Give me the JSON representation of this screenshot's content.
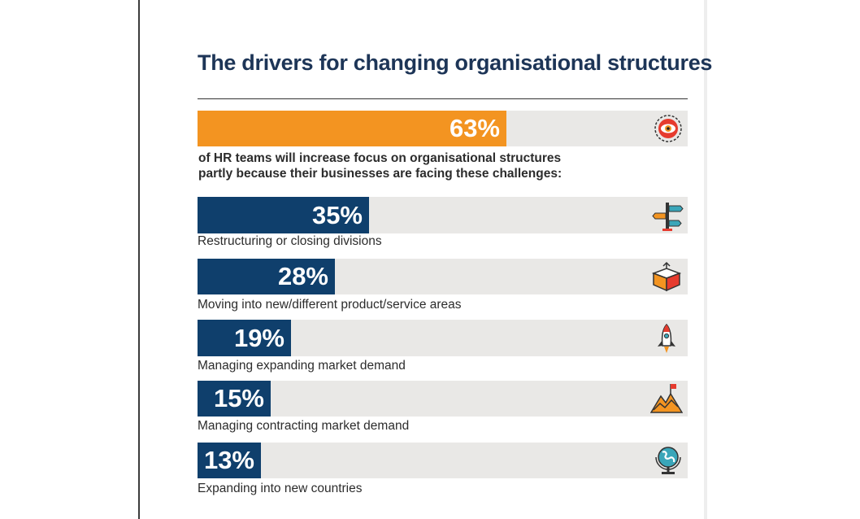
{
  "header": {
    "title": "The drivers for changing organisational structures"
  },
  "colors": {
    "highlight": "#f39421",
    "series": "#0f3f6c",
    "track": "#e9e8e6",
    "title": "#1d3557"
  },
  "headline": {
    "label": "63%",
    "value": 63,
    "caption_line1": "of HR teams will increase focus on organisational structures",
    "caption_line2": "partly because their businesses are facing these challenges:",
    "icon": "eye-target-icon"
  },
  "drivers": [
    {
      "label": "35%",
      "value": 35,
      "caption": "Restructuring or closing divisions",
      "icon": "signpost-icon"
    },
    {
      "label": "28%",
      "value": 28,
      "caption": "Moving into new/different product/service areas",
      "icon": "open-box-icon"
    },
    {
      "label": "19%",
      "value": 19,
      "caption": "Managing expanding market demand",
      "icon": "rocket-icon"
    },
    {
      "label": "15%",
      "value": 15,
      "caption": "Managing contracting market demand",
      "icon": "mountain-flag-icon"
    },
    {
      "label": "13%",
      "value": 13,
      "caption": "Expanding into new countries",
      "icon": "globe-icon"
    }
  ],
  "chart_data": {
    "type": "bar",
    "title": "The drivers for changing organisational structures",
    "categories": [
      "of HR teams will increase focus on organisational structures partly because their businesses are facing these challenges:",
      "Restructuring or closing divisions",
      "Moving into new/different product/service areas",
      "Managing expanding market demand",
      "Managing contracting market demand",
      "Expanding into new countries"
    ],
    "values": [
      63,
      35,
      28,
      19,
      15,
      13
    ],
    "ylim": [
      0,
      100
    ],
    "orientation": "horizontal",
    "grid": false
  }
}
